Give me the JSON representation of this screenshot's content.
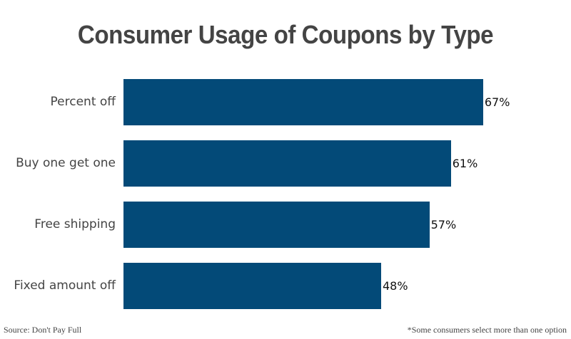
{
  "chart_data": {
    "type": "bar",
    "orientation": "horizontal",
    "title": "Consumer Usage of Coupons by Type",
    "categories": [
      "Percent off",
      "Buy one get one",
      "Free shipping",
      "Fixed amount off"
    ],
    "values": [
      67,
      61,
      57,
      48
    ],
    "value_labels": [
      "67%",
      "61%",
      "57%",
      "48%"
    ],
    "xlabel": "",
    "ylabel": "",
    "xlim": [
      0,
      100
    ],
    "grid": false,
    "legend": null,
    "bar_color": "#034a78",
    "source": "Source: Don't Pay Full",
    "note": "*Some consumers select more than one option"
  }
}
